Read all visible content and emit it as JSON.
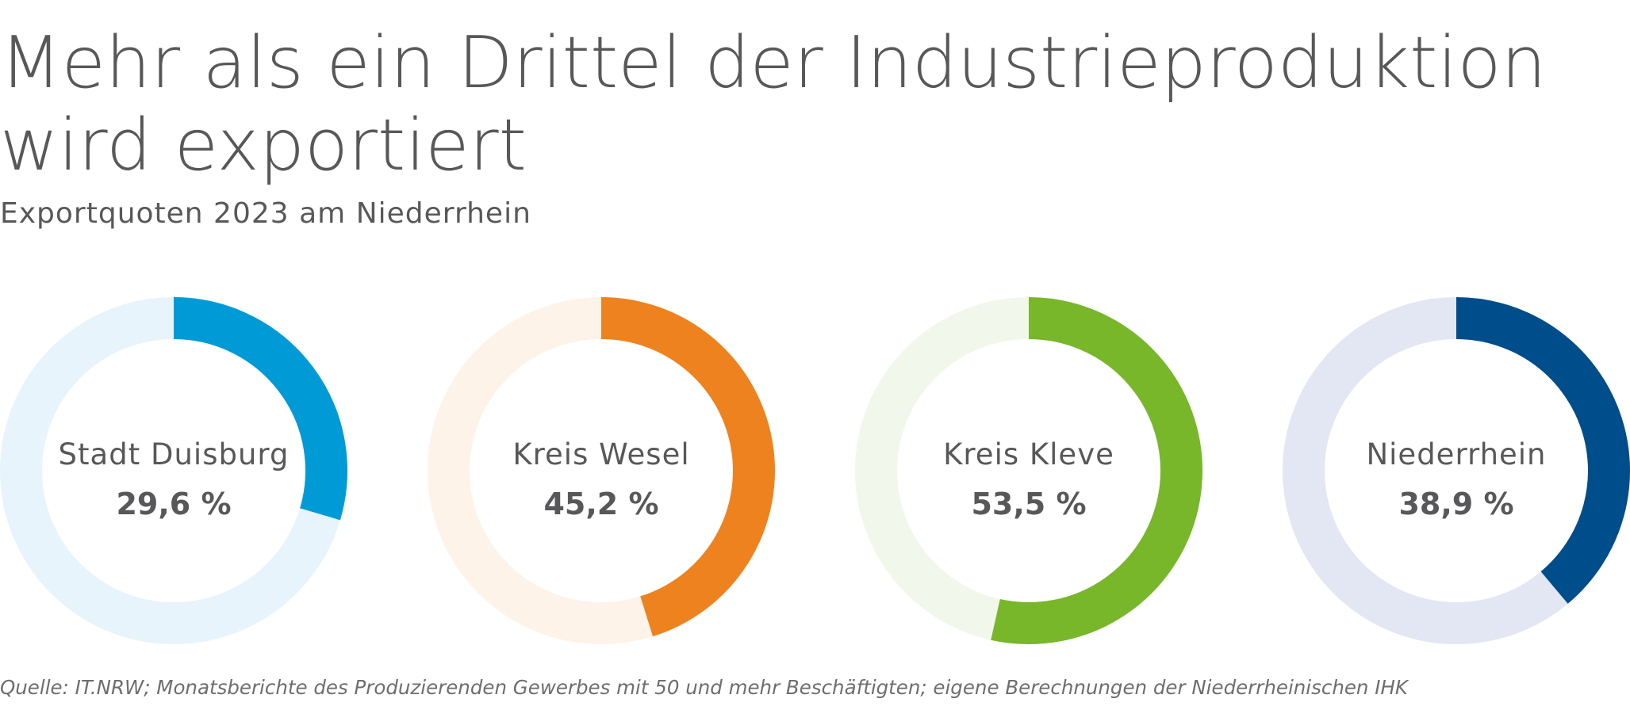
{
  "title_line1": "Mehr als ein Drittel der Industrieproduktion",
  "title_line2": "wird exportiert",
  "subtitle": "Exportquoten 2023 am Niederrhein",
  "source": "Quelle: IT.NRW; Monatsberichte des Produzierenden Gewerbes mit 50 und mehr Beschäftigten; eigene Berechnungen der Niederrheinischen IHK",
  "chart_data": {
    "type": "donut",
    "title": "Mehr als ein Drittel der Industrieproduktion wird exportiert",
    "subtitle": "Exportquoten 2023 am Niederrhein",
    "unit": "%",
    "charts": [
      {
        "category": "Stadt Duisburg",
        "value": 29.6,
        "value_label": "29,6 %",
        "color": "#009bd6",
        "track_color": "#e8f4fb"
      },
      {
        "category": "Kreis Wesel",
        "value": 45.2,
        "value_label": "45,2 %",
        "color": "#ee821e",
        "track_color": "#fdf3e9"
      },
      {
        "category": "Kreis Kleve",
        "value": 53.5,
        "value_label": "53,5 %",
        "color": "#78b62a",
        "track_color": "#f2f7ec"
      },
      {
        "category": "Niederrhein",
        "value": 38.9,
        "value_label": "38,9 %",
        "color": "#004d8b",
        "track_color": "#e3e6f3"
      }
    ]
  }
}
